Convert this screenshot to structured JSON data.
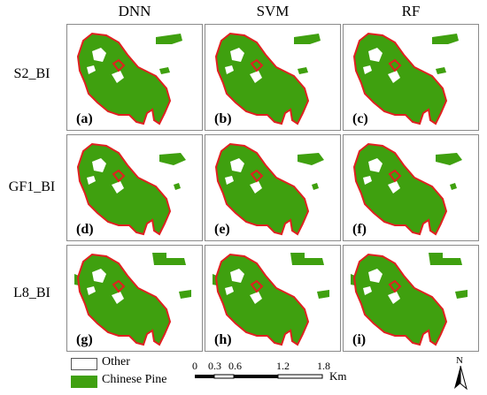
{
  "columns": [
    "DNN",
    "SVM",
    "RF"
  ],
  "rows": [
    "S2_BI",
    "GF1_BI",
    "L8_BI"
  ],
  "panel_labels": [
    "(a)",
    "(b)",
    "(c)",
    "(d)",
    "(e)",
    "(f)",
    "(g)",
    "(h)",
    "(i)"
  ],
  "legend": {
    "other": "Other",
    "pine": "Chinese Pine"
  },
  "scalebar": {
    "ticks": [
      "0",
      "0.3",
      "0.6",
      "1.2",
      "1.8"
    ],
    "unit": "Km"
  },
  "north": "N",
  "colors": {
    "pine": "#3fa00f",
    "boundary": "#e02020",
    "other": "#ffffff"
  }
}
